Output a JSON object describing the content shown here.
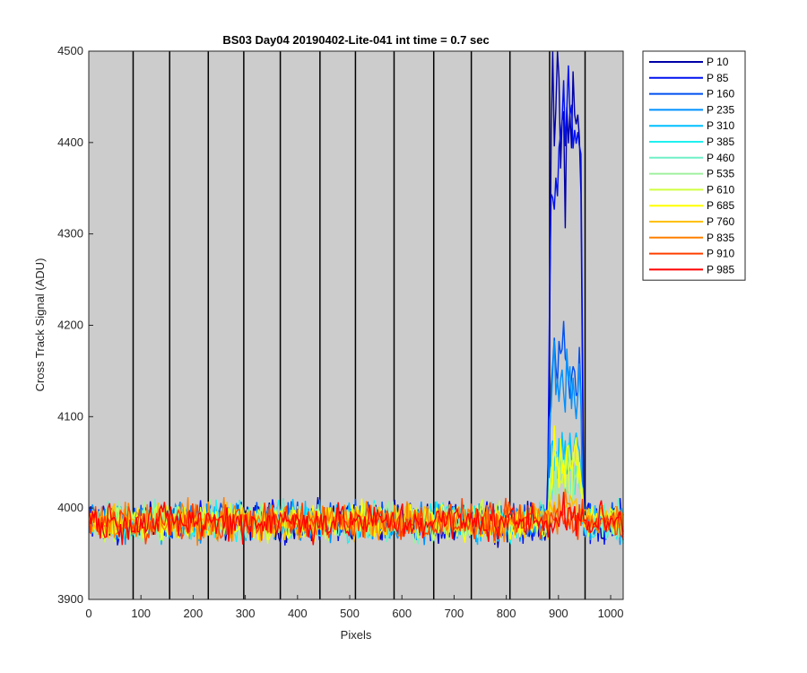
{
  "chart_data": {
    "type": "line",
    "title": "BS03 Day04 20190402-Lite-041 int time = 0.7 sec",
    "xlabel": "Pixels",
    "ylabel": "Cross Track Signal (ADU)",
    "xlim": [
      0,
      1024
    ],
    "ylim": [
      3900,
      4500
    ],
    "xticks": [
      0,
      100,
      200,
      300,
      400,
      500,
      600,
      700,
      800,
      900,
      1000
    ],
    "yticks": [
      3900,
      4000,
      4100,
      4200,
      4300,
      4400,
      4500
    ],
    "background": "#cccccc",
    "grid": "off",
    "legend_position": "outside-top-right",
    "vertical_lines_x": [
      85,
      155,
      229,
      297,
      367,
      443,
      511,
      585,
      661,
      733,
      807,
      883,
      951
    ],
    "baseline": 3985,
    "baseline_noise": 10,
    "feature_range": [
      880,
      948
    ],
    "series": [
      {
        "name": "P 10",
        "color": "#0000a8",
        "feature_level": 4410
      },
      {
        "name": "P 85",
        "color": "#0010f0",
        "feature_level": 4410
      },
      {
        "name": "P 160",
        "color": "#0050f0",
        "feature_level": 4160
      },
      {
        "name": "P 235",
        "color": "#0090ff",
        "feature_level": 4140
      },
      {
        "name": "P 310",
        "color": "#00c0ff",
        "feature_level": 4065
      },
      {
        "name": "P 385",
        "color": "#20f0f0",
        "feature_level": 4040
      },
      {
        "name": "P 460",
        "color": "#70f0c8",
        "feature_level": 4030
      },
      {
        "name": "P 535",
        "color": "#a0f0a0",
        "feature_level": 4030
      },
      {
        "name": "P 610",
        "color": "#d0ff40",
        "feature_level": 4040
      },
      {
        "name": "P 685",
        "color": "#ffff00",
        "feature_level": 4050
      },
      {
        "name": "P 760",
        "color": "#ffc000",
        "feature_level": 4000
      },
      {
        "name": "P 835",
        "color": "#ff8000",
        "feature_level": 3995
      },
      {
        "name": "P 910",
        "color": "#ff4000",
        "feature_level": 3990
      },
      {
        "name": "P 985",
        "color": "#ff0000",
        "feature_level": 3988
      }
    ]
  }
}
